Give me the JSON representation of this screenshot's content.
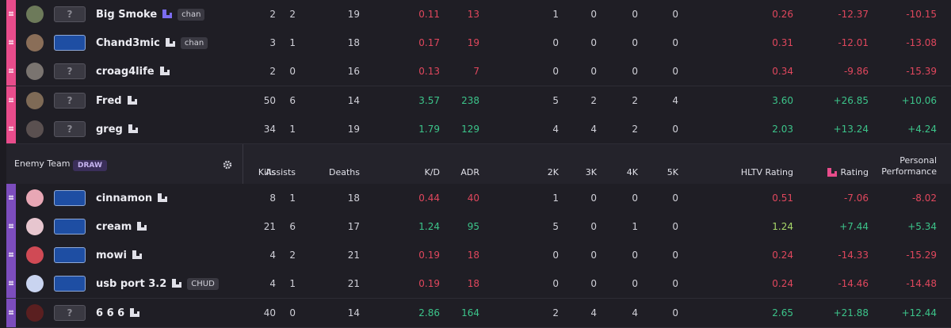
{
  "top_team": {
    "rows": [
      {
        "name": "Big Smoke",
        "rank": "?",
        "tag": "chan",
        "stats": [
          "2",
          "2",
          "19",
          "0.11",
          "13",
          "1",
          "0",
          "0",
          "0",
          "0.26",
          "-12.37",
          "-10.15"
        ]
      },
      {
        "name": "Chand3mic",
        "tag": "chan",
        "stats": [
          "3",
          "1",
          "18",
          "0.17",
          "19",
          "0",
          "0",
          "0",
          "0",
          "0.31",
          "-12.01",
          "-13.08"
        ]
      },
      {
        "name": "croag4life",
        "rank": "?",
        "stats": [
          "2",
          "0",
          "16",
          "0.13",
          "7",
          "0",
          "0",
          "0",
          "0",
          "0.34",
          "-9.86",
          "-15.39"
        ]
      },
      {
        "name": "Fred",
        "rank": "?",
        "stats": [
          "50",
          "6",
          "14",
          "3.57",
          "238",
          "5",
          "2",
          "2",
          "4",
          "3.60",
          "+26.85",
          "+10.06"
        ]
      },
      {
        "name": "greg",
        "rank": "?",
        "stats": [
          "34",
          "1",
          "19",
          "1.79",
          "129",
          "4",
          "4",
          "2",
          "0",
          "2.03",
          "+13.24",
          "+4.24"
        ]
      }
    ]
  },
  "enemy_team": {
    "name": "Enemy Team",
    "result": "DRAW",
    "rows": [
      {
        "name": "cinnamon",
        "stats": [
          "8",
          "1",
          "18",
          "0.44",
          "40",
          "1",
          "0",
          "0",
          "0",
          "0.51",
          "-7.06",
          "-8.02"
        ]
      },
      {
        "name": "cream",
        "stats": [
          "21",
          "6",
          "17",
          "1.24",
          "95",
          "5",
          "0",
          "1",
          "0",
          "1.24",
          "+7.44",
          "+5.34"
        ]
      },
      {
        "name": "mowi",
        "stats": [
          "4",
          "2",
          "21",
          "0.19",
          "18",
          "0",
          "0",
          "0",
          "0",
          "0.24",
          "-14.33",
          "-15.29"
        ]
      },
      {
        "name": "usb port 3.2",
        "tag": "CHUD",
        "stats": [
          "4",
          "1",
          "21",
          "0.19",
          "18",
          "0",
          "0",
          "0",
          "0",
          "0.24",
          "-14.46",
          "-14.48"
        ]
      },
      {
        "name": "6 6 6",
        "rank": "?",
        "stats": [
          "40",
          "0",
          "14",
          "2.86",
          "164",
          "2",
          "4",
          "4",
          "0",
          "2.65",
          "+21.88",
          "+12.44"
        ]
      }
    ]
  },
  "columns": [
    "Kills",
    "Assists",
    "Deaths",
    "K/D",
    "ADR",
    "2K",
    "3K",
    "4K",
    "5K",
    "HLTV Rating",
    "Rating",
    "Personal Performance"
  ]
}
